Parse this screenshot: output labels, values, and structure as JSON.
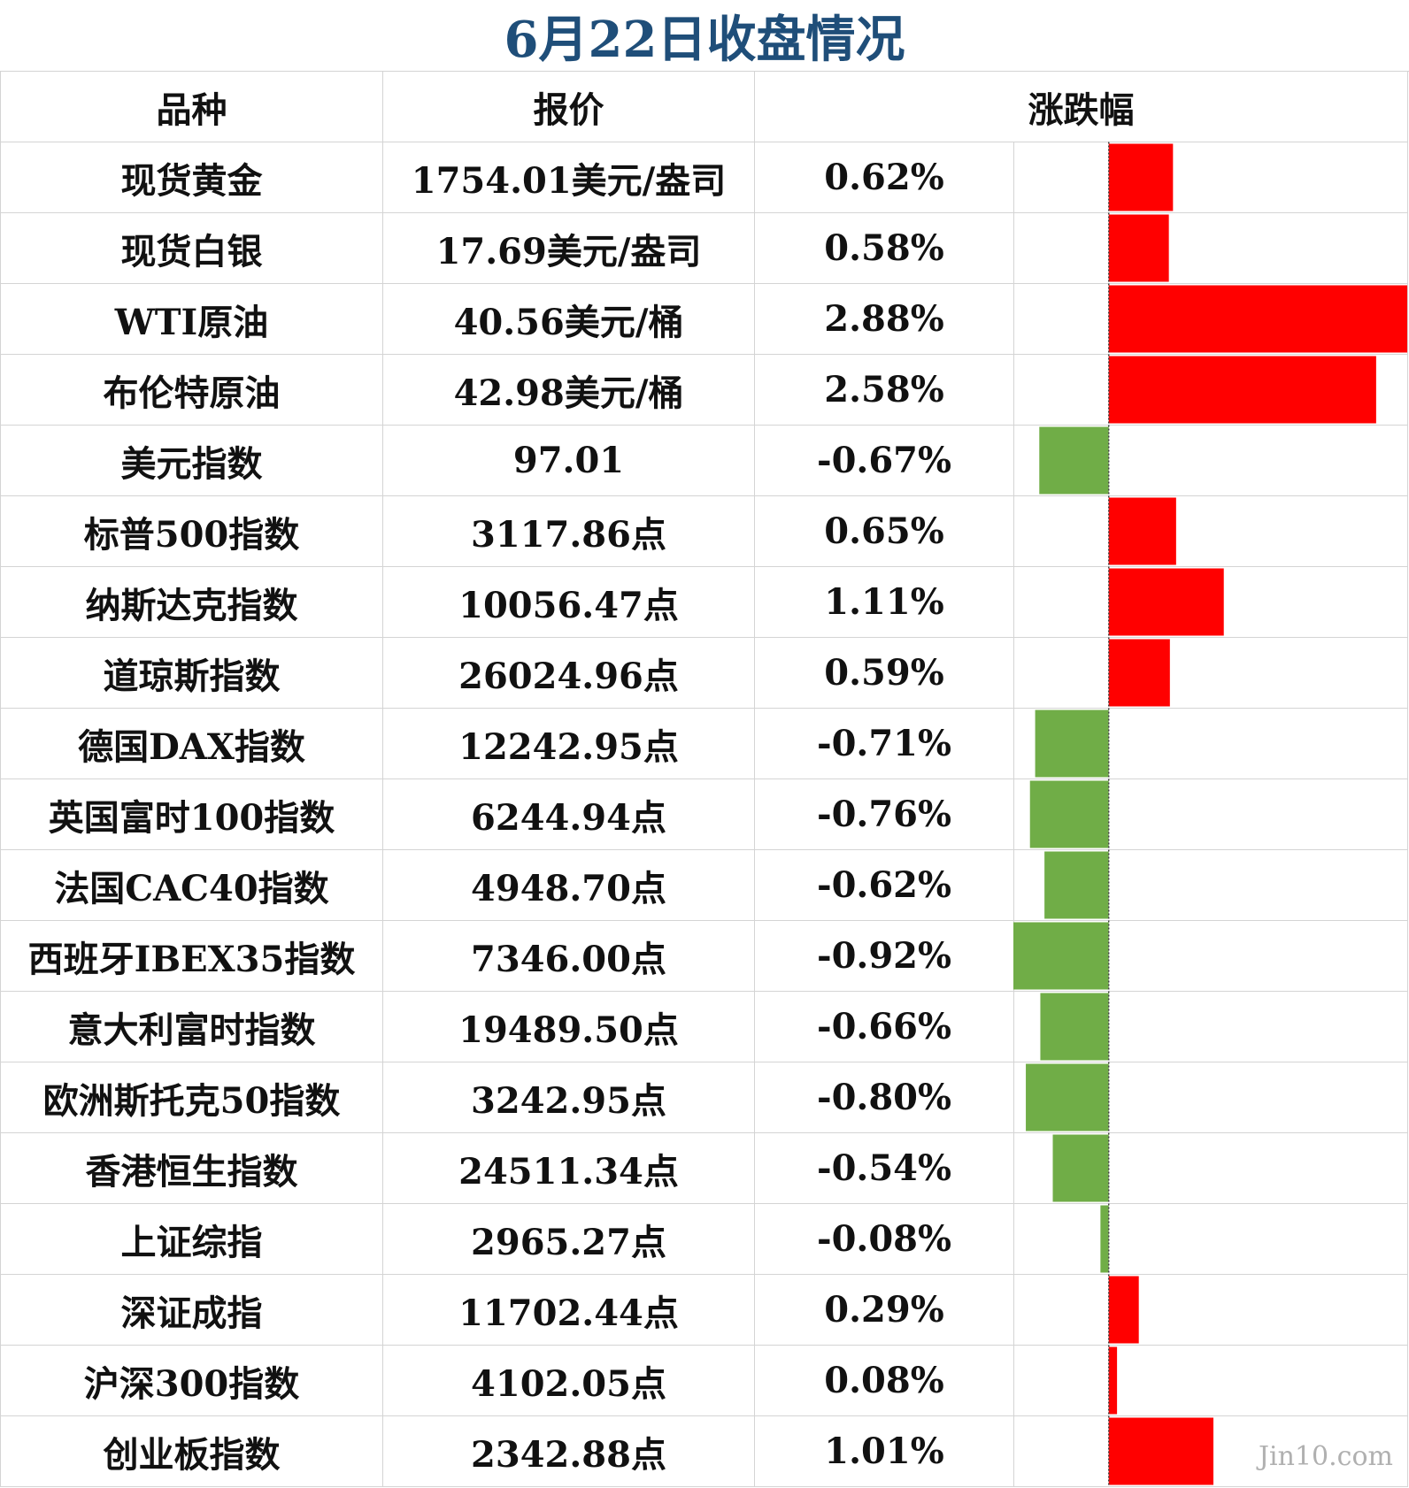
{
  "title": "6月22日收盘情况",
  "headers": {
    "name": "品种",
    "price": "报价",
    "change": "涨跌幅"
  },
  "watermark": "Jin10.com",
  "colors": {
    "up": "#ff0000",
    "down": "#70ad47",
    "title": "#1f4e79"
  },
  "chart_data": {
    "type": "bar",
    "orientation": "horizontal",
    "categories": [
      "现货黄金",
      "现货白银",
      "WTI原油",
      "布伦特原油",
      "美元指数",
      "标普500指数",
      "纳斯达克指数",
      "道琼斯指数",
      "德国DAX指数",
      "英国富时100指数",
      "法国CAC40指数",
      "西班牙IBEX35指数",
      "意大利富时指数",
      "欧洲斯托克50指数",
      "香港恒生指数",
      "上证综指",
      "深证成指",
      "沪深300指数",
      "创业板指数"
    ],
    "prices": [
      "1754.01美元/盎司",
      "17.69美元/盎司",
      "40.56美元/桶",
      "42.98美元/桶",
      "97.01",
      "3117.86点",
      "10056.47点",
      "26024.96点",
      "12242.95点",
      "6244.94点",
      "4948.70点",
      "7346.00点",
      "19489.50点",
      "3242.95点",
      "24511.34点",
      "2965.27点",
      "11702.44点",
      "4102.05点",
      "2342.88点"
    ],
    "labels": [
      "0.62%",
      "0.58%",
      "2.88%",
      "2.58%",
      "-0.67%",
      "0.65%",
      "1.11%",
      "0.59%",
      "-0.71%",
      "-0.76%",
      "-0.62%",
      "-0.92%",
      "-0.66%",
      "-0.80%",
      "-0.54%",
      "-0.08%",
      "0.29%",
      "0.08%",
      "1.01%"
    ],
    "values": [
      0.62,
      0.58,
      2.88,
      2.58,
      -0.67,
      0.65,
      1.11,
      0.59,
      -0.71,
      -0.76,
      -0.62,
      -0.92,
      -0.66,
      -0.8,
      -0.54,
      -0.08,
      0.29,
      0.08,
      1.01
    ],
    "xlim": [
      -0.92,
      2.88
    ]
  }
}
